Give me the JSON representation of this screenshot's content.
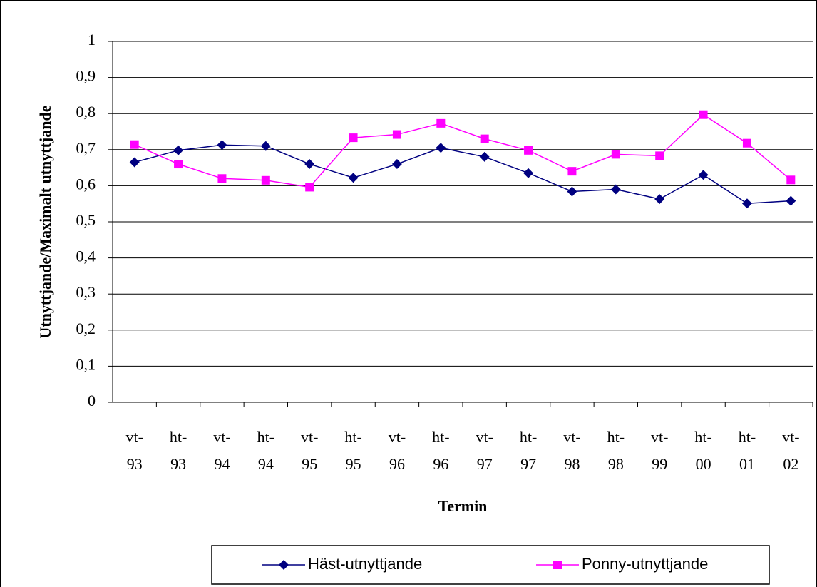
{
  "chart_data": {
    "type": "line",
    "y_label": "Utnyttjande/Maximalt utnyttjande",
    "x_label": "Termin",
    "categories": [
      "vt-93",
      "ht-93",
      "vt-94",
      "ht-94",
      "vt-95",
      "ht-95",
      "vt-96",
      "ht-96",
      "vt-97",
      "ht-97",
      "vt-98",
      "ht-98",
      "vt-99",
      "ht-00",
      "ht-01",
      "vt-02"
    ],
    "series": [
      {
        "name": "Häst-utnyttjande",
        "color": "#000080",
        "marker": "diamond",
        "values": [
          0.665,
          0.698,
          0.713,
          0.71,
          0.66,
          0.622,
          0.66,
          0.705,
          0.68,
          0.635,
          0.584,
          0.59,
          0.563,
          0.63,
          0.551,
          0.558
        ]
      },
      {
        "name": "Ponny-utnyttjande",
        "color": "#ff00ff",
        "marker": "square",
        "values": [
          0.714,
          0.66,
          0.62,
          0.615,
          0.596,
          0.733,
          0.742,
          0.773,
          0.73,
          0.698,
          0.64,
          0.687,
          0.683,
          0.797,
          0.718,
          0.616
        ]
      }
    ],
    "ylim": [
      0,
      1
    ],
    "yticks": [
      0,
      {
        "value": 0.1,
        "label": "0,1"
      },
      {
        "value": 0.2,
        "label": "0,2"
      },
      {
        "value": 0.3,
        "label": "0,3"
      },
      {
        "value": 0.4,
        "label": "0,4"
      },
      {
        "value": 0.5,
        "label": "0,5"
      },
      {
        "value": 0.6,
        "label": "0,6"
      },
      {
        "value": 0.7,
        "label": "0,7"
      },
      {
        "value": 0.8,
        "label": "0,8"
      },
      {
        "value": 0.9,
        "label": "0,9"
      },
      1
    ],
    "grid": true,
    "legend": "bottom"
  }
}
